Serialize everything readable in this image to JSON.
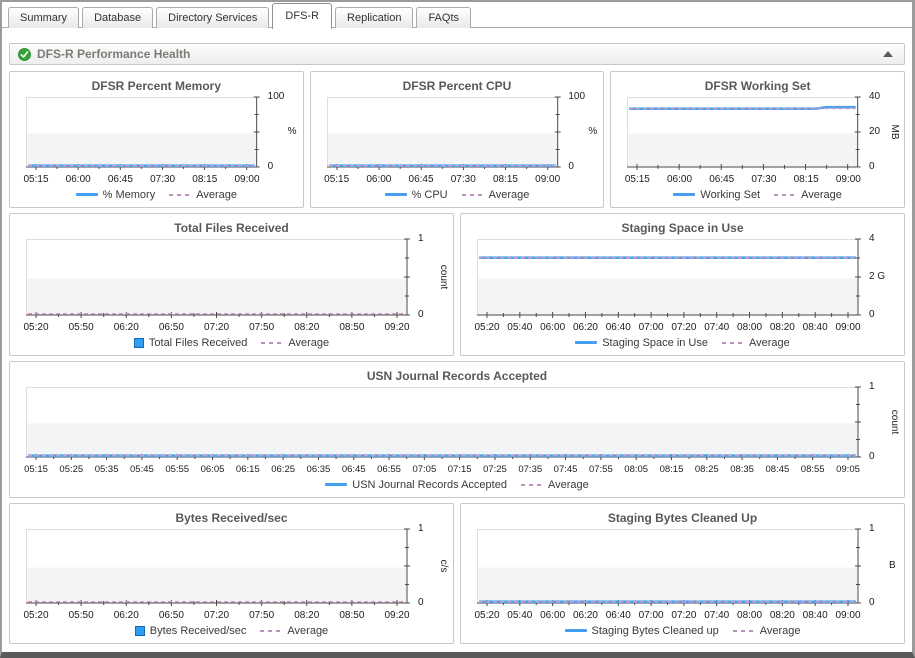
{
  "tabs": [
    {
      "label": "Summary",
      "active": false
    },
    {
      "label": "Database",
      "active": false
    },
    {
      "label": "Directory Services",
      "active": false
    },
    {
      "label": "DFS-R",
      "active": true
    },
    {
      "label": "Replication",
      "active": false
    },
    {
      "label": "FAQts",
      "active": false
    }
  ],
  "section": {
    "title": "DFS-R Performance Health",
    "status_icon": "green-check-icon",
    "collapse_icon": "triangle-up-icon"
  },
  "colors": {
    "series_line": "#54a5ef",
    "series_dash": "#3d95ea",
    "average_line": "#d79ac2",
    "bar_swatch": "#2e9df2",
    "status_green": "#35a435",
    "axis": "#4a4a4a",
    "plot_band": "#f3f4f6"
  },
  "chart_data": {
    "note": "see charts array"
  },
  "charts": [
    {
      "id": "dfsr-percent-memory",
      "title": "DFSR Percent Memory",
      "type": "line",
      "y_top": "100",
      "y_mid": "",
      "y_bottom": "0",
      "unit": "%",
      "unit_rotated": false,
      "ylim": [
        0,
        100
      ],
      "x_labels": [
        "05:15",
        "06:00",
        "06:45",
        "07:30",
        "08:15",
        "09:00"
      ],
      "values": [
        1,
        1,
        1,
        1,
        1,
        1,
        1,
        1,
        1,
        1,
        1,
        1
      ],
      "average": 1,
      "series_label": "% Memory",
      "avg_label": "Average"
    },
    {
      "id": "dfsr-percent-cpu",
      "title": "DFSR Percent CPU",
      "type": "line",
      "y_top": "100",
      "y_mid": "",
      "y_bottom": "0",
      "unit": "%",
      "unit_rotated": false,
      "ylim": [
        0,
        100
      ],
      "x_labels": [
        "05:15",
        "06:00",
        "06:45",
        "07:30",
        "08:15",
        "09:00"
      ],
      "values": [
        1,
        1.3,
        1,
        1.2,
        1,
        1.4,
        1,
        1.2,
        1.5,
        1,
        1.2,
        1,
        1.3,
        1,
        1.2,
        1,
        1.4,
        1,
        1.2,
        1.3,
        1,
        1.2,
        1,
        1.1
      ],
      "average": 1,
      "series_label": "% CPU",
      "avg_label": "Average"
    },
    {
      "id": "dfsr-working-set",
      "title": "DFSR Working Set",
      "type": "line",
      "y_top": "40",
      "y_mid": "20",
      "y_bottom": "0",
      "unit": "MB",
      "unit_rotated": true,
      "ylim": [
        0,
        40
      ],
      "x_labels": [
        "05:15",
        "06:00",
        "06:45",
        "07:30",
        "08:15",
        "09:00"
      ],
      "values": [
        34.3,
        34.3,
        34.3,
        34.3,
        34.3,
        34.3,
        34.3,
        34.3,
        34.3,
        34.3,
        34.3,
        34.3,
        34.3,
        34.3,
        34.3,
        34.3,
        34.3,
        34.3,
        34.3,
        34.3,
        35.2,
        35.2,
        35.2,
        35.2
      ],
      "average": 34.4,
      "series_label": "Working Set",
      "avg_label": "Average"
    },
    {
      "id": "total-files-received",
      "title": "Total Files Received",
      "type": "bar",
      "y_top": "1",
      "y_mid": "",
      "y_bottom": "0",
      "unit": "count",
      "unit_rotated": true,
      "ylim": [
        0,
        1
      ],
      "x_labels": [
        "05:20",
        "05:50",
        "06:20",
        "06:50",
        "07:20",
        "07:50",
        "08:20",
        "08:50",
        "09:20"
      ],
      "values": [
        0,
        0,
        0,
        0,
        0,
        0,
        0,
        0,
        0
      ],
      "average": 0,
      "series_label": "Total Files Received",
      "avg_label": "Average"
    },
    {
      "id": "staging-space-in-use",
      "title": "Staging Space in Use",
      "type": "line",
      "y_top": "4",
      "y_mid": "2 G",
      "y_bottom": "0",
      "unit": "",
      "unit_rotated": false,
      "ylim": [
        0,
        4
      ],
      "x_labels": [
        "05:20",
        "05:40",
        "06:00",
        "06:20",
        "06:40",
        "07:00",
        "07:20",
        "07:40",
        "08:00",
        "08:20",
        "08:40",
        "09:00"
      ],
      "values": [
        3.1,
        3.1
      ],
      "average": 3.1,
      "series_label": "Staging Space in Use",
      "avg_label": "Average"
    },
    {
      "id": "usn-journal-records-accepted",
      "title": "USN Journal Records Accepted",
      "type": "line",
      "y_top": "1",
      "y_mid": "",
      "y_bottom": "0",
      "unit": "count",
      "unit_rotated": true,
      "ylim": [
        0,
        1
      ],
      "x_labels": [
        "05:15",
        "05:25",
        "05:35",
        "05:45",
        "05:55",
        "06:05",
        "06:15",
        "06:25",
        "06:35",
        "06:45",
        "06:55",
        "07:05",
        "07:15",
        "07:25",
        "07:35",
        "07:45",
        "07:55",
        "08:05",
        "08:15",
        "08:25",
        "08:35",
        "08:45",
        "08:55",
        "09:05"
      ],
      "values": [
        0,
        0
      ],
      "average": 0,
      "series_label": "USN Journal Records Accepted",
      "avg_label": "Average"
    },
    {
      "id": "bytes-received-sec",
      "title": "Bytes Received/sec",
      "type": "bar",
      "y_top": "1",
      "y_mid": "",
      "y_bottom": "0",
      "unit": "c/s",
      "unit_rotated": true,
      "ylim": [
        0,
        1
      ],
      "x_labels": [
        "05:20",
        "05:50",
        "06:20",
        "06:50",
        "07:20",
        "07:50",
        "08:20",
        "08:50",
        "09:20"
      ],
      "values": [
        0,
        0,
        0,
        0,
        0,
        0,
        0,
        0,
        0
      ],
      "average": 0,
      "series_label": "Bytes Received/sec",
      "avg_label": "Average"
    },
    {
      "id": "staging-bytes-cleaned-up",
      "title": "Staging Bytes Cleaned Up",
      "type": "line",
      "y_top": "1",
      "y_mid": "",
      "y_bottom": "0",
      "unit": "B",
      "unit_rotated": false,
      "ylim": [
        0,
        1
      ],
      "x_labels": [
        "05:20",
        "05:40",
        "06:00",
        "06:20",
        "06:40",
        "07:00",
        "07:20",
        "07:40",
        "08:00",
        "08:20",
        "08:40",
        "09:00"
      ],
      "values": [
        0,
        0
      ],
      "average": 0,
      "series_label": "Staging Bytes Cleaned up",
      "avg_label": "Average"
    }
  ]
}
